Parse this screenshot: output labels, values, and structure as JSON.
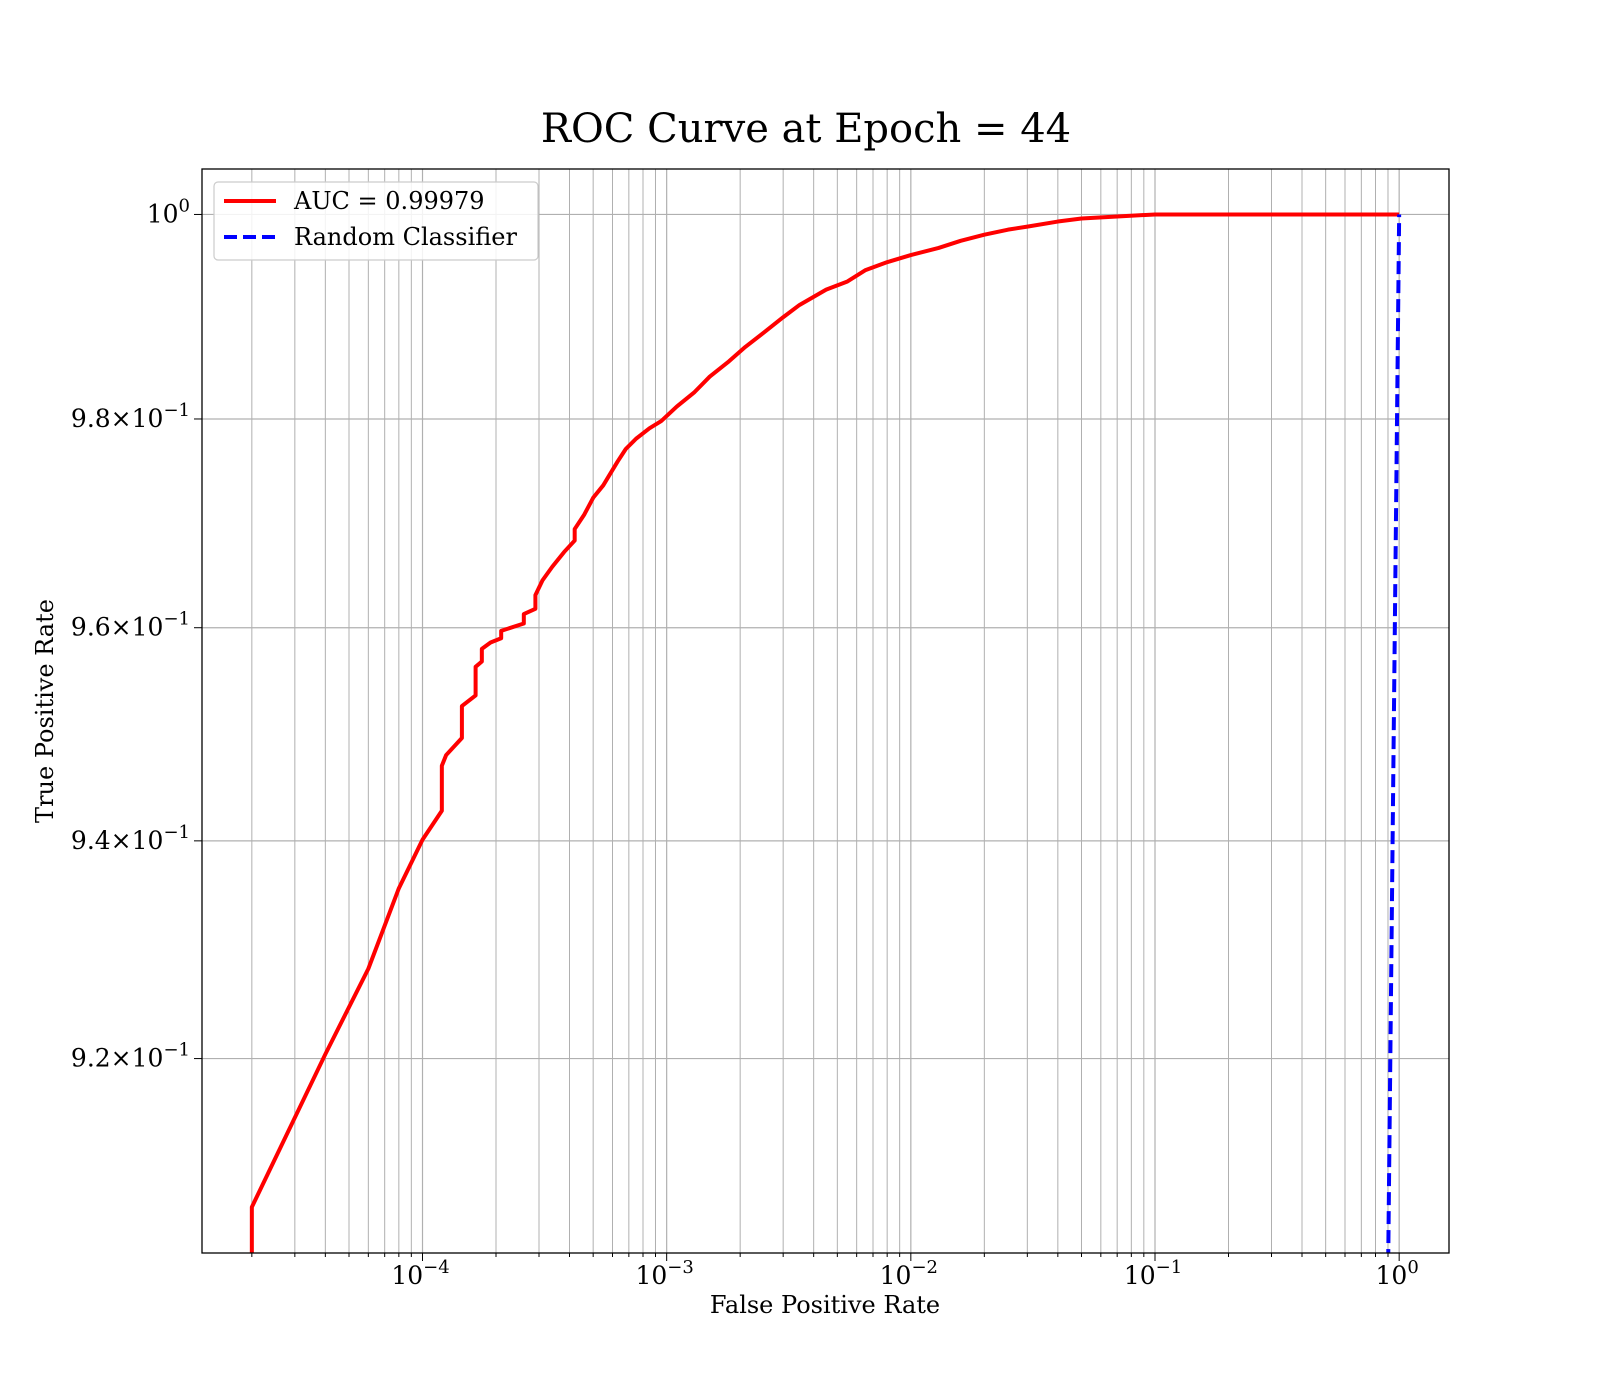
{
  "chart_data": {
    "type": "line",
    "title": "ROC Curve at Epoch = 44",
    "xlabel": "False Positive Rate",
    "ylabel": "True Positive Rate",
    "xscale": "log",
    "yscale": "log",
    "xlim": [
      1.25e-05,
      1.6
    ],
    "ylim": [
      0.9025,
      1.0045
    ],
    "grid": "both (major and minor)",
    "legend_location": "upper-left",
    "x_tick_labels": [
      {
        "base": "10",
        "exp": "−4",
        "value": 0.0001
      },
      {
        "base": "10",
        "exp": "−3",
        "value": 0.001
      },
      {
        "base": "10",
        "exp": "−2",
        "value": 0.01
      },
      {
        "base": "10",
        "exp": "−1",
        "value": 0.1
      },
      {
        "base": "10",
        "exp": "0",
        "value": 1
      }
    ],
    "y_tick_labels": [
      {
        "mant": "9.2",
        "base": "10",
        "exp": "−1",
        "value": 0.92
      },
      {
        "mant": "9.4",
        "base": "10",
        "exp": "−1",
        "value": 0.94
      },
      {
        "mant": "9.6",
        "base": "10",
        "exp": "−1",
        "value": 0.96
      },
      {
        "mant": "9.8",
        "base": "10",
        "exp": "−1",
        "value": 0.98
      },
      {
        "mant": "",
        "base": "10",
        "exp": "0",
        "value": 1.0
      }
    ],
    "series": [
      {
        "name": "AUC = 0.99979",
        "color": "#ff0000",
        "style": "solid",
        "x": [
          2e-05,
          2e-05,
          4e-05,
          6e-05,
          8e-05,
          0.0001,
          0.00012,
          0.00012,
          0.000125,
          0.000145,
          0.000145,
          0.000165,
          0.000165,
          0.000175,
          0.000175,
          0.00019,
          0.00021,
          0.00021,
          0.00026,
          0.00026,
          0.00029,
          0.00029,
          0.00031,
          0.00034,
          0.00038,
          0.00042,
          0.00042,
          0.00046,
          0.0005,
          0.00055,
          0.00058,
          0.00063,
          0.00068,
          0.00075,
          0.00085,
          0.00095,
          0.0011,
          0.0013,
          0.0015,
          0.0018,
          0.0021,
          0.0025,
          0.003,
          0.0035,
          0.0045,
          0.0055,
          0.0065,
          0.008,
          0.01,
          0.013,
          0.016,
          0.02,
          0.025,
          0.03,
          0.04,
          0.05,
          0.07,
          0.1,
          0.13,
          1.0
        ],
        "y": [
          0.9025,
          0.9066,
          0.9204,
          0.9282,
          0.9356,
          0.9401,
          0.9428,
          0.947,
          0.948,
          0.9496,
          0.9526,
          0.9536,
          0.9563,
          0.9568,
          0.958,
          0.9586,
          0.959,
          0.9597,
          0.9604,
          0.9613,
          0.9618,
          0.9631,
          0.9645,
          0.9658,
          0.9672,
          0.9683,
          0.9694,
          0.9708,
          0.9724,
          0.9736,
          0.9745,
          0.9759,
          0.9771,
          0.9781,
          0.9791,
          0.9798,
          0.9812,
          0.9826,
          0.9841,
          0.9856,
          0.987,
          0.9884,
          0.9899,
          0.9911,
          0.9926,
          0.9934,
          0.9945,
          0.9953,
          0.996,
          0.9967,
          0.9974,
          0.998,
          0.9985,
          0.9988,
          0.9993,
          0.9996,
          0.9998,
          1.0,
          1.0,
          1.0
        ]
      },
      {
        "name": "Random Classifier",
        "color": "#0000ff",
        "style": "dashed",
        "x": [
          0.9,
          0.925,
          0.95,
          0.975,
          1.0
        ],
        "y": [
          0.9,
          0.925,
          0.95,
          0.975,
          1.0
        ]
      }
    ]
  }
}
